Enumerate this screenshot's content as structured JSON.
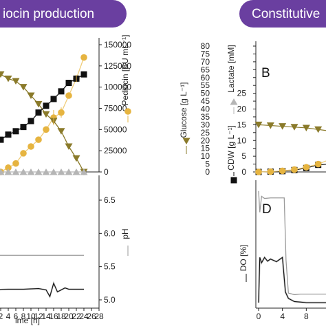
{
  "banners": {
    "left": "iocin production",
    "right": "Constitutive",
    "color": "#6a3fa0"
  },
  "colors": {
    "glucose": "#8a7a2a",
    "pediocin": "#e6b440",
    "pediocin_light": "#f0cd7a",
    "cdw": "#111111",
    "lactate": "#b5b5b5",
    "ph": "#999999",
    "do": "#111111",
    "do_grey": "#9a9a9a"
  },
  "left_top_axis": {
    "ticks": [
      "0",
      "25000",
      "50000",
      "75000",
      "100000",
      "125000",
      "150000"
    ],
    "label": "Pediocin [BU mL⁻¹]"
  },
  "left_bottom_axis": {
    "ticks": [
      "5.0",
      "5.5",
      "6.0",
      "6.5"
    ],
    "label": "pH"
  },
  "left_x_axis": {
    "ticks": [
      "2",
      "4",
      "6",
      "8",
      "10",
      "12",
      "14",
      "16",
      "18",
      "20",
      "22",
      "24",
      "26",
      "28"
    ],
    "label": "ime [h]"
  },
  "right_top_axis": {
    "ticks": [
      "0",
      "5",
      "10",
      "15",
      "20",
      "25",
      "30",
      "35",
      "40",
      "45",
      "50",
      "55",
      "60",
      "65",
      "70",
      "75",
      "80"
    ],
    "glucose_label": "Glucose [g L⁻¹]",
    "lactate_label": "Lactate [mM]",
    "cdw_label": "CDW [g L⁻¹]",
    "panel": "B"
  },
  "right_bottom_axis": {
    "label": "DO [%]",
    "panel": "D"
  },
  "right_x_axis": {
    "ticks": [
      "0",
      "4",
      "8"
    ]
  },
  "chart_data": [
    {
      "type": "line",
      "title": "",
      "xlabel": "ime [h]",
      "ylabel": "Pediocin [BU mL⁻¹]",
      "ylim": [
        0,
        150000
      ],
      "xlim": [
        0,
        28
      ],
      "series": [
        {
          "name": "Pediocin",
          "x": [
            2,
            4,
            6,
            8,
            10,
            12,
            14,
            16,
            18,
            20,
            22,
            24
          ],
          "values": [
            0,
            5000,
            10000,
            22000,
            30000,
            38000,
            50000,
            64000,
            70000,
            90000,
            110000,
            135000
          ]
        },
        {
          "name": "Glucose",
          "x": [
            2,
            4,
            6,
            8,
            10,
            12,
            14,
            16,
            18,
            20,
            22,
            24
          ],
          "values": [
            115000,
            110000,
            107000,
            100000,
            90000,
            80000,
            68000,
            60000,
            48000,
            30000,
            16000,
            0
          ]
        },
        {
          "name": "CDW",
          "x": [
            2,
            4,
            6,
            8,
            10,
            12,
            14,
            16,
            18,
            20,
            22,
            24
          ],
          "values": [
            38000,
            44000,
            48000,
            53000,
            60000,
            70000,
            78000,
            86000,
            95000,
            105000,
            110000,
            115000
          ]
        },
        {
          "name": "Lactate",
          "x": [
            2,
            4,
            6,
            8,
            10,
            12,
            14,
            16,
            18,
            20,
            22,
            24
          ],
          "values": [
            0,
            0,
            0,
            0,
            0,
            0,
            0,
            0,
            0,
            0,
            0,
            0
          ]
        }
      ]
    },
    {
      "type": "line",
      "title": "",
      "xlabel": "ime [h]",
      "ylabel": "pH",
      "ylim": [
        5.0,
        6.75
      ],
      "xlim": [
        0,
        28
      ],
      "series": [
        {
          "name": "pH",
          "x": [
            0,
            4,
            8,
            12,
            16,
            20,
            24
          ],
          "values": [
            5.67,
            5.67,
            5.67,
            5.67,
            5.67,
            5.67,
            5.67
          ]
        },
        {
          "name": "DO",
          "x": [
            0,
            4,
            8,
            12,
            14,
            15,
            16,
            17,
            18,
            19,
            20,
            22,
            24
          ],
          "values": [
            5.15,
            5.16,
            5.16,
            5.17,
            5.15,
            5.05,
            5.25,
            5.12,
            5.15,
            5.18,
            5.16,
            5.16,
            5.16
          ]
        }
      ]
    },
    {
      "type": "line",
      "title": "",
      "xlabel": "",
      "ylabel": "Glucose [g L⁻¹]",
      "ylim": [
        0,
        80
      ],
      "xlim": [
        0,
        12
      ],
      "series": [
        {
          "name": "Glucose",
          "x": [
            0,
            2,
            4,
            6,
            8,
            10,
            12
          ],
          "values": [
            30,
            29.5,
            29,
            28.5,
            28,
            27,
            26
          ]
        },
        {
          "name": "CDW",
          "x": [
            0,
            2,
            4,
            6,
            8,
            10,
            12
          ],
          "values": [
            0,
            0.2,
            0.5,
            1.2,
            2.5,
            4.5,
            5
          ]
        },
        {
          "name": "Pediocin",
          "x": [
            0,
            2,
            4,
            6,
            8,
            10,
            12
          ],
          "values": [
            0,
            0.2,
            0.7,
            1.5,
            3,
            5,
            8
          ]
        }
      ]
    },
    {
      "type": "line",
      "title": "",
      "xlabel": "",
      "ylabel": "DO [%]",
      "xlim": [
        0,
        12
      ],
      "series": [
        {
          "name": "DO",
          "x": [
            0,
            0.2,
            0.5,
            1,
            2,
            3,
            4,
            4.3,
            4.6,
            5,
            6,
            7,
            8,
            12
          ],
          "values": [
            21,
            17,
            20,
            19.6,
            19.7,
            19.7,
            19.7,
            19.7,
            8,
            1.8,
            1.5,
            1.6,
            1.6,
            1.6
          ]
        },
        {
          "name": "DO-2",
          "x": [
            0,
            0.2,
            0.5,
            1,
            1.5,
            2,
            3,
            4,
            4.5,
            5,
            6,
            8,
            12
          ],
          "values": [
            0,
            8.5,
            7.5,
            8.5,
            7.8,
            8.2,
            7.7,
            8.5,
            2,
            0.8,
            0.2,
            0,
            0
          ]
        }
      ]
    }
  ]
}
